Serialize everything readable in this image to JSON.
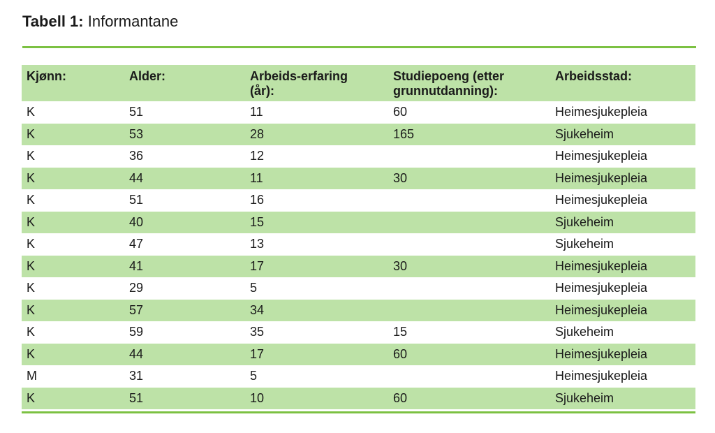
{
  "title": {
    "label": "Tabell 1:",
    "text": " Informantane"
  },
  "colors": {
    "band_green": "#bde2a7",
    "rule_green": "#7cc142",
    "text": "#1a1a1a",
    "background": "#ffffff"
  },
  "table": {
    "columns": [
      "Kjønn:",
      "Alder:",
      "Arbeids-erfaring (år):",
      "Studiepoeng (etter grunnutdanning):",
      "Arbeidsstad:"
    ],
    "rows": [
      [
        "K",
        "51",
        "11",
        "60",
        "Heimesjukepleia"
      ],
      [
        "K",
        "53",
        "28",
        "165",
        "Sjukeheim"
      ],
      [
        "K",
        "36",
        "12",
        "",
        "Heimesjukepleia"
      ],
      [
        "K",
        "44",
        "11",
        "30",
        "Heimesjukepleia"
      ],
      [
        "K",
        "51",
        "16",
        "",
        "Heimesjukepleia"
      ],
      [
        "K",
        "40",
        "15",
        "",
        "Sjukeheim"
      ],
      [
        "K",
        "47",
        "13",
        "",
        "Sjukeheim"
      ],
      [
        "K",
        "41",
        "17",
        "30",
        "Heimesjukepleia"
      ],
      [
        "K",
        "29",
        "5",
        "",
        "Heimesjukepleia"
      ],
      [
        "K",
        "57",
        "34",
        "",
        "Heimesjukepleia"
      ],
      [
        "K",
        "59",
        "35",
        "15",
        "Sjukeheim"
      ],
      [
        "K",
        "44",
        "17",
        "60",
        "Heimesjukepleia"
      ],
      [
        "M",
        "31",
        "5",
        "",
        "Heimesjukepleia"
      ],
      [
        "K",
        "51",
        "10",
        "60",
        "Sjukeheim"
      ]
    ]
  }
}
